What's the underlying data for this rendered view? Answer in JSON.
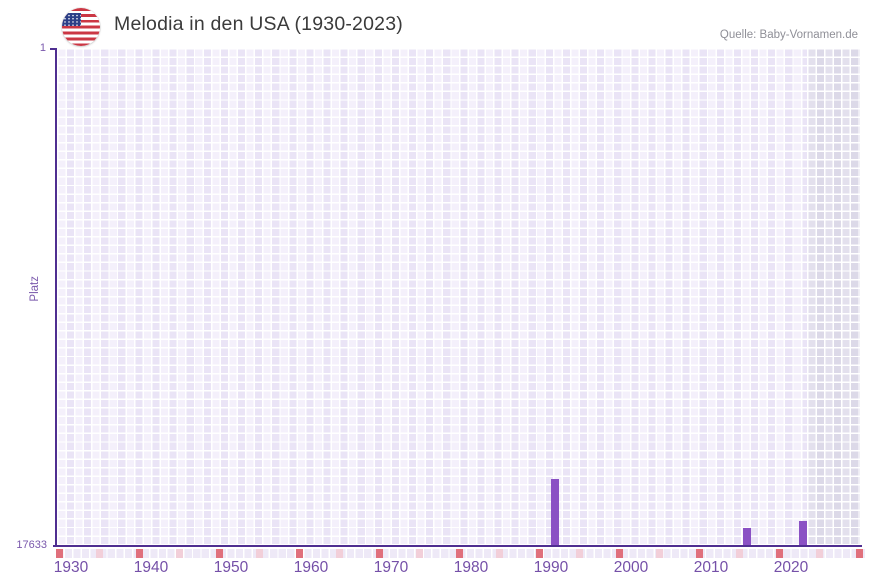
{
  "header": {
    "flag_icon": "us-flag-icon",
    "title": "Melodia in den USA (1930-2023)",
    "source": "Quelle: Baby-Vornamen.de"
  },
  "chart_data": {
    "type": "bar",
    "title": "Melodia in den USA (1930-2023)",
    "xlabel": "",
    "ylabel": "Platz",
    "y_axis": {
      "top_tick_label": "1",
      "bottom_tick_label": "17633",
      "min": 1,
      "max": 17633,
      "inverted": true
    },
    "x_axis": {
      "start_year": 1930,
      "end_year": 2023,
      "labeled_tick_years": [
        1930,
        1940,
        1950,
        1960,
        1970,
        1980,
        1990,
        2000,
        2010,
        2020
      ],
      "major_tick_years": [
        1930,
        1940,
        1950,
        1960,
        1970,
        1980,
        1990,
        2000,
        2010,
        2020,
        2030
      ],
      "minor_tick_years": [
        1935,
        1945,
        1955,
        1965,
        1975,
        1985,
        1995,
        2005,
        2015,
        2025
      ]
    },
    "points": [
      {
        "year": 1992,
        "rank": 15290
      },
      {
        "year": 2016,
        "rank": 17030
      },
      {
        "year": 2023,
        "rank": 16780
      }
    ],
    "highlight_region": {
      "start_year": 2024,
      "end_year": 2030,
      "meaning": "no data after 2023"
    },
    "grid": true,
    "legend": null,
    "colors": {
      "bar": "#8a51c4",
      "axis": "#4f2e91",
      "axis_label": "#7a58ac",
      "x_label": "#7550a8",
      "tick_major_red": "#e0707c",
      "tick_minor_pink": "#f2cfd9",
      "grid_light": "#f4f0fb",
      "grid_dark": "#eae4f6",
      "highlight_band": "#e0ddea",
      "title_text": "#3b3b3b",
      "source_text": "#8f8f97"
    }
  }
}
